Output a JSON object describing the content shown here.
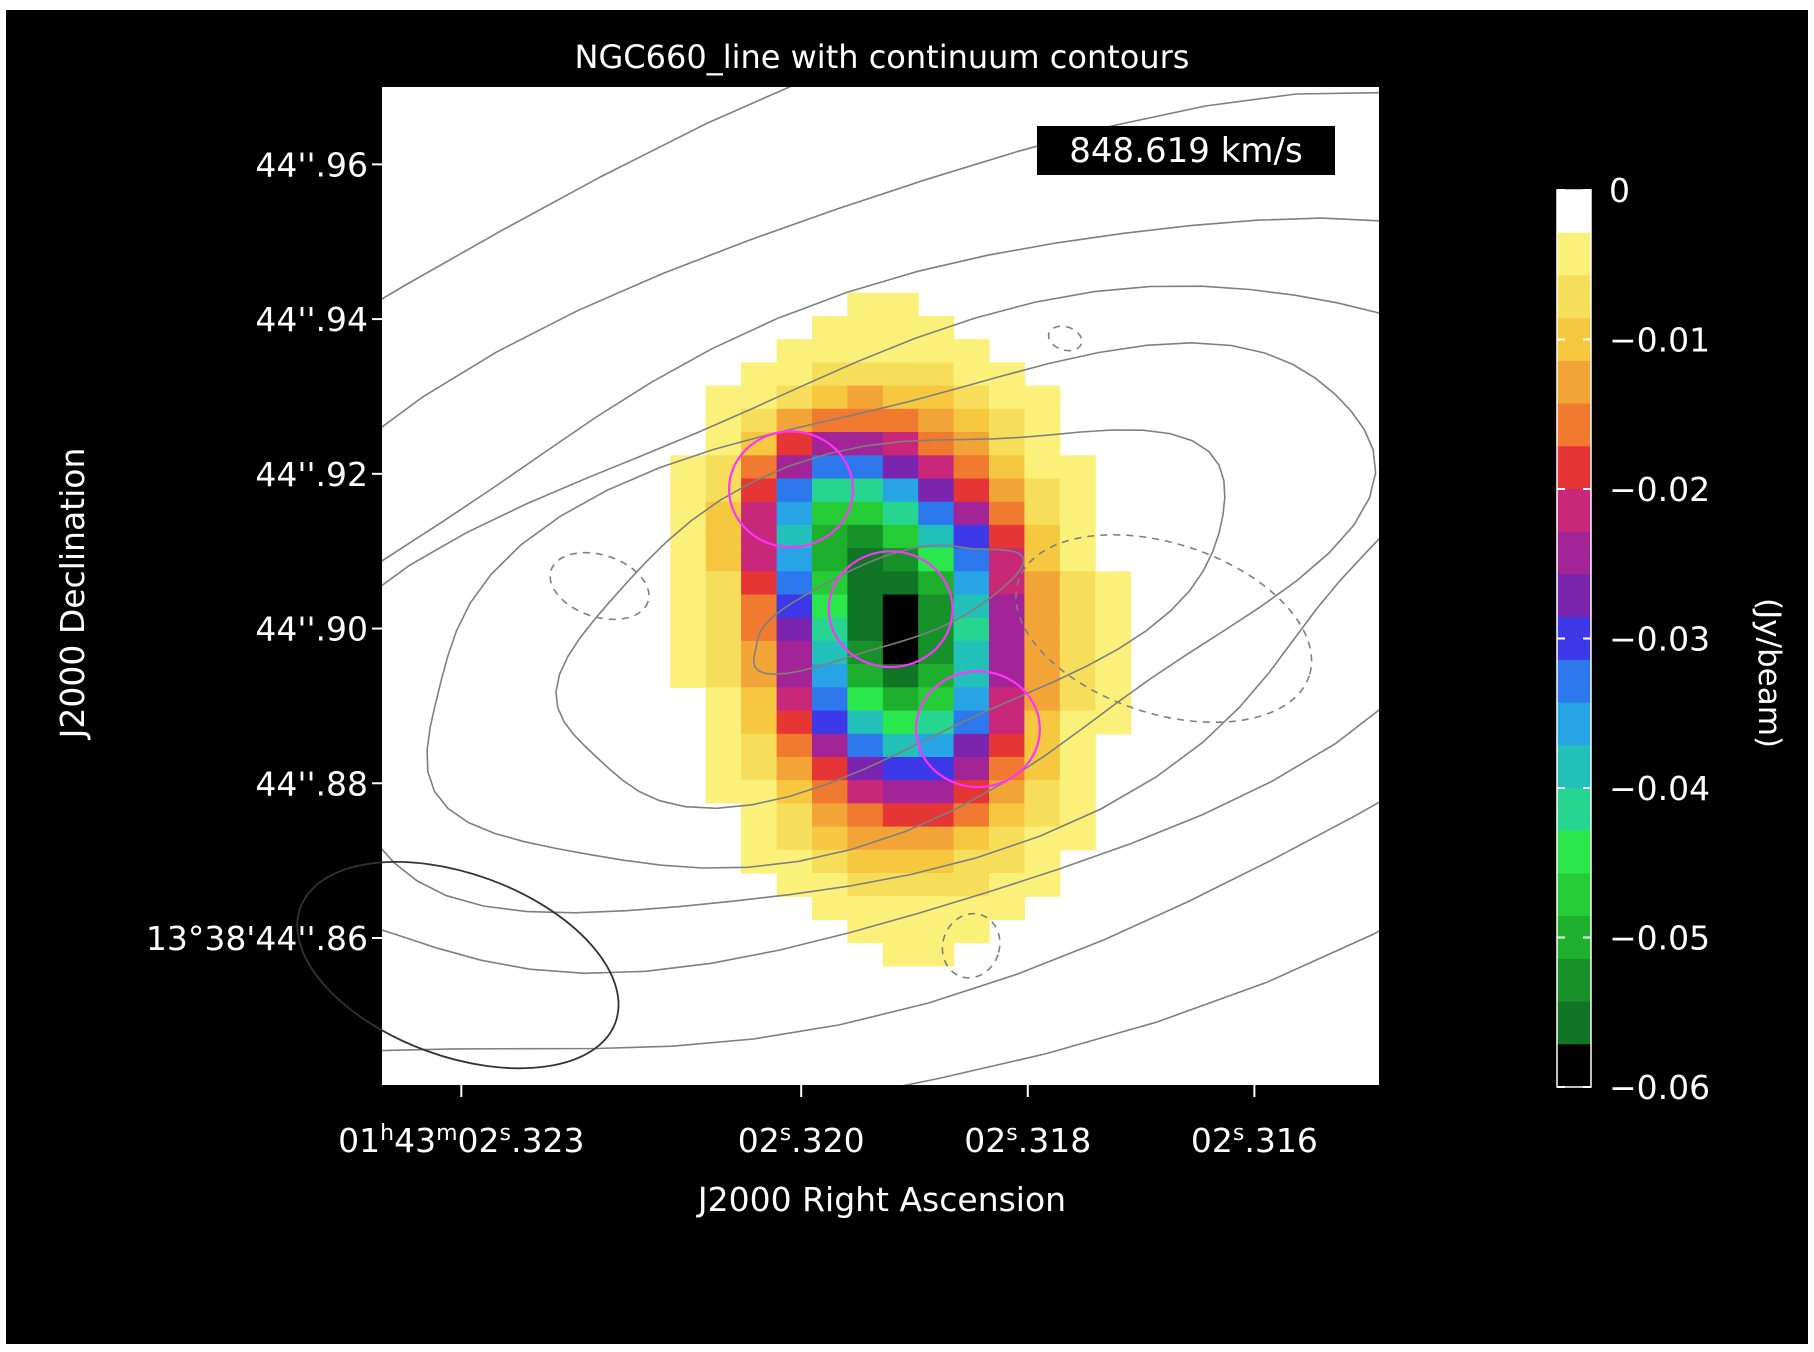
{
  "chart_data": {
    "type": "heatmap",
    "title": "NGC660_line with continuum contours",
    "velocity_label": "848.619 km/s",
    "xlabel": "J2000 Right Ascension",
    "ylabel": "J2000 Declination",
    "x_ticks": [
      {
        "value": 2.323,
        "main": "01",
        "sup1": "h",
        "mid": "43",
        "sup2": "m",
        "tail": "02",
        "sup3": "s",
        "end": ".323"
      },
      {
        "value": 2.32,
        "main": "02",
        "sup1": "s",
        "end": ".320"
      },
      {
        "value": 2.318,
        "main": "02",
        "sup1": "s",
        "end": ".318"
      },
      {
        "value": 2.316,
        "main": "02",
        "sup1": "s",
        "end": ".316"
      }
    ],
    "y_ticks": [
      {
        "value": 44.96,
        "label": "44''.96"
      },
      {
        "value": 44.94,
        "label": "44''.94"
      },
      {
        "value": 44.92,
        "label": "44''.92"
      },
      {
        "value": 44.9,
        "label": "44''.90"
      },
      {
        "value": 44.88,
        "label": "44''.88"
      },
      {
        "value": 44.86,
        "label": "13°38'44''.86"
      }
    ],
    "xlim": [
      2.3237,
      2.3149
    ],
    "ylim": [
      44.841,
      44.97
    ],
    "colorbar": {
      "label": "(Jy/beam)",
      "range": [
        -0.06,
        0.0
      ],
      "ticks": [
        {
          "value": 0.0,
          "label": "0"
        },
        {
          "value": -0.01,
          "label": "−0.01"
        },
        {
          "value": -0.02,
          "label": "−0.02"
        },
        {
          "value": -0.03,
          "label": "−0.03"
        },
        {
          "value": -0.04,
          "label": "−0.04"
        },
        {
          "value": -0.05,
          "label": "−0.05"
        },
        {
          "value": -0.06,
          "label": "−0.06"
        }
      ],
      "colors": [
        "#ffffff",
        "#fbf07a",
        "#f7de5a",
        "#f5c83f",
        "#f3a437",
        "#f07a30",
        "#e63535",
        "#c9287a",
        "#a32496",
        "#7a24b0",
        "#3d38e8",
        "#2e78ee",
        "#27a4e6",
        "#22c0b8",
        "#26d690",
        "#2ae84c",
        "#25cc35",
        "#1eb02c",
        "#17922a",
        "#107524",
        "#000000"
      ]
    },
    "image": {
      "center": [
        2.31928,
        44.9014
      ],
      "dx": 0.0003125,
      "dy": 0.003,
      "core_peak": -0.06
    },
    "continuum_contours": {
      "color": "#7f7f7f",
      "center": [
        2.31928,
        44.903
      ],
      "levels": [
        {
          "rx": 0.00125,
          "ry": 0.0055
        },
        {
          "rx": 0.0031,
          "ry": 0.0195
        },
        {
          "rx": 0.0044,
          "ry": 0.0265
        },
        {
          "rx": 0.0053,
          "ry": 0.0325
        },
        {
          "rx": 0.0062,
          "ry": 0.0395
        },
        {
          "rx": 0.0079,
          "ry": 0.0505
        },
        {
          "rx": 0.0098,
          "ry": 0.064
        }
      ],
      "negative": [
        {
          "x": 2.32178,
          "y": 44.9055,
          "rx": 0.00045,
          "ry": 0.004
        },
        {
          "x": 2.3168,
          "y": 44.9,
          "rx": 0.00135,
          "ry": 0.011
        },
        {
          "x": 2.3185,
          "y": 44.859,
          "rx": 0.00025,
          "ry": 0.0042
        },
        {
          "x": 2.31767,
          "y": 44.9375,
          "rx": 0.00015,
          "ry": 0.0015
        }
      ]
    },
    "magenta_circles": [
      {
        "x": 2.32009,
        "y": 44.918,
        "r": 0.0087
      },
      {
        "x": 2.31921,
        "y": 44.9025,
        "r": 0.0087
      },
      {
        "x": 2.31844,
        "y": 44.887,
        "r": 0.0087
      }
    ],
    "beam": {
      "x": 2.32303,
      "y": 44.8565,
      "rx": 0.00148,
      "ry": 0.0118,
      "angle_deg": 20
    }
  }
}
